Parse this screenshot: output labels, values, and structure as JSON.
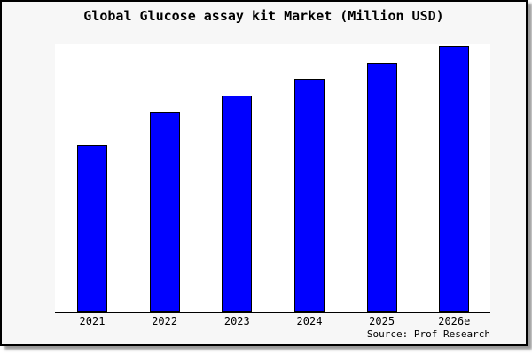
{
  "title": "Global Glucose assay kit Market (Million USD)",
  "source": "Source: Prof Research",
  "colors": {
    "bar_fill": "#0000ff",
    "bar_border": "#000000",
    "card_background": "#f7f7f7",
    "plot_background": "#ffffff",
    "axis": "#000000",
    "card_border": "#000000"
  },
  "chart_data": {
    "type": "bar",
    "title": "Global Glucose assay kit Market (Million USD)",
    "categories": [
      "2021",
      "2022",
      "2023",
      "2024",
      "2025",
      "2026e"
    ],
    "values_relative_pct": [
      62.3,
      74.5,
      80.9,
      87.1,
      93.0,
      99.3
    ],
    "xlabel": "",
    "ylabel": "",
    "y_axis_shown": false,
    "grid": false,
    "legend": false,
    "bar_color": "#0000ff",
    "source": "Source: Prof Research"
  }
}
